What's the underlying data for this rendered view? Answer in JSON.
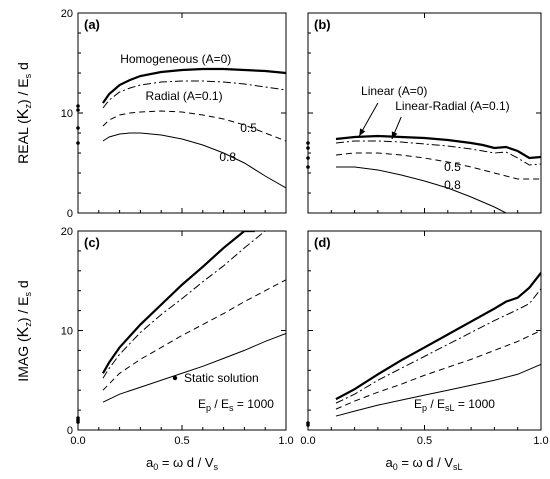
{
  "figure": {
    "y_label_real": [
      "REAL (",
      "K",
      "z",
      ") / E",
      "s",
      " d"
    ],
    "y_label_imag": [
      "IMAG (",
      "K",
      "z",
      ") / E",
      "s",
      " d"
    ],
    "x_label_left": [
      "a",
      "0",
      " = ω d / V",
      "s"
    ],
    "x_label_right": [
      "a",
      "0",
      " = ω d / V",
      "sL"
    ]
  },
  "chart_data": [
    {
      "id": "a",
      "panel_label": "(a)",
      "type": "line",
      "xlim": [
        0,
        1
      ],
      "ylim": [
        0,
        20
      ],
      "x_ticks": [
        "0.0",
        "0.5",
        "1.0"
      ],
      "y_ticks": [
        "0",
        "10",
        "20"
      ],
      "show_x_ticklabels": false,
      "show_y_ticklabels": true,
      "annotations": [
        {
          "text": "Homogeneous (A=0)",
          "x": 0.47,
          "y": 15.0
        },
        {
          "text": "Radial (A=0.1)",
          "x": 0.51,
          "y": 11.3
        },
        {
          "text": "0.5",
          "x": 0.82,
          "y": 8.1
        },
        {
          "text": "0.8",
          "x": 0.72,
          "y": 5.2
        }
      ],
      "static_points": [
        10.7,
        10.3,
        8.5,
        7.0
      ],
      "series": [
        {
          "style": "solid-thick",
          "x": [
            0.12,
            0.15,
            0.2,
            0.25,
            0.3,
            0.4,
            0.5,
            0.6,
            0.7,
            0.8,
            0.9,
            1.0
          ],
          "y": [
            11.0,
            11.9,
            12.8,
            13.3,
            13.7,
            14.1,
            14.3,
            14.4,
            14.4,
            14.3,
            14.2,
            14.0
          ]
        },
        {
          "style": "dash-dot",
          "x": [
            0.12,
            0.15,
            0.2,
            0.25,
            0.3,
            0.4,
            0.5,
            0.6,
            0.7,
            0.8,
            0.9,
            1.0
          ],
          "y": [
            10.5,
            11.3,
            12.1,
            12.5,
            12.8,
            13.1,
            13.2,
            13.2,
            13.1,
            12.9,
            12.6,
            12.3
          ]
        },
        {
          "style": "dashed",
          "x": [
            0.12,
            0.15,
            0.2,
            0.25,
            0.3,
            0.4,
            0.5,
            0.6,
            0.7,
            0.8,
            0.9,
            1.0
          ],
          "y": [
            8.7,
            9.3,
            9.8,
            10.0,
            10.1,
            10.2,
            10.1,
            9.8,
            9.4,
            8.8,
            8.0,
            7.2
          ]
        },
        {
          "style": "solid",
          "x": [
            0.12,
            0.15,
            0.2,
            0.25,
            0.3,
            0.4,
            0.5,
            0.6,
            0.7,
            0.8,
            0.9,
            1.0
          ],
          "y": [
            7.2,
            7.6,
            7.9,
            8.0,
            8.0,
            7.8,
            7.4,
            6.8,
            6.0,
            5.0,
            3.7,
            2.5
          ]
        }
      ]
    },
    {
      "id": "b",
      "panel_label": "(b)",
      "type": "line",
      "xlim": [
        0,
        1
      ],
      "ylim": [
        0,
        20
      ],
      "x_ticks": [
        "0.0",
        "0.5",
        "1.0"
      ],
      "y_ticks": [
        "0",
        "10",
        "20"
      ],
      "show_x_ticklabels": false,
      "show_y_ticklabels": false,
      "annotations": [
        {
          "text": "Linear (A=0)",
          "x": 0.37,
          "y": 11.8
        },
        {
          "text": "Linear-Radial (A=0.1)",
          "x": 0.62,
          "y": 10.3
        },
        {
          "text": "0.5",
          "x": 0.62,
          "y": 4.2
        },
        {
          "text": "0.8",
          "x": 0.62,
          "y": 2.4
        }
      ],
      "arrows": [
        {
          "x1": 0.3,
          "y1": 11.0,
          "x2": 0.22,
          "y2": 7.7
        },
        {
          "x1": 0.4,
          "y1": 9.6,
          "x2": 0.36,
          "y2": 7.4
        }
      ],
      "static_points": [
        7.0,
        6.5,
        5.5,
        4.6
      ],
      "series": [
        {
          "style": "solid-thick",
          "x": [
            0.12,
            0.2,
            0.3,
            0.4,
            0.5,
            0.6,
            0.7,
            0.75,
            0.8,
            0.85,
            0.9,
            0.95,
            1.0
          ],
          "y": [
            7.4,
            7.6,
            7.7,
            7.6,
            7.5,
            7.3,
            7.0,
            6.8,
            6.5,
            6.6,
            6.2,
            5.5,
            5.6
          ]
        },
        {
          "style": "dash-dot",
          "x": [
            0.12,
            0.2,
            0.3,
            0.4,
            0.5,
            0.6,
            0.7,
            0.8,
            0.85,
            0.9,
            0.95,
            1.0
          ],
          "y": [
            7.0,
            7.2,
            7.2,
            7.1,
            6.9,
            6.7,
            6.4,
            6.0,
            6.1,
            5.5,
            4.8,
            4.9
          ]
        },
        {
          "style": "dashed",
          "x": [
            0.12,
            0.2,
            0.3,
            0.4,
            0.5,
            0.6,
            0.7,
            0.8,
            0.9,
            1.0
          ],
          "y": [
            5.8,
            6.0,
            6.0,
            5.8,
            5.5,
            5.1,
            4.6,
            4.0,
            3.4,
            3.4
          ]
        },
        {
          "style": "solid",
          "x": [
            0.12,
            0.2,
            0.3,
            0.4,
            0.5,
            0.6,
            0.7,
            0.8,
            0.85
          ],
          "y": [
            4.6,
            4.6,
            4.3,
            3.8,
            3.2,
            2.5,
            1.6,
            0.6,
            0.0
          ]
        }
      ]
    },
    {
      "id": "c",
      "panel_label": "(c)",
      "type": "line",
      "xlim": [
        0,
        1
      ],
      "ylim": [
        0,
        20
      ],
      "x_ticks": [
        "0.0",
        "0.5",
        "1.0"
      ],
      "y_ticks": [
        "0",
        "10",
        "20"
      ],
      "show_x_ticklabels": true,
      "show_y_ticklabels": true,
      "legend_marker": "Static solution",
      "note": [
        "E",
        "p",
        " / E",
        "s",
        " = 1000"
      ],
      "static_points": [
        1.2,
        1.0,
        0.8
      ],
      "series": [
        {
          "style": "solid-thick",
          "x": [
            0.12,
            0.15,
            0.2,
            0.3,
            0.4,
            0.5,
            0.6,
            0.7,
            0.8,
            0.85
          ],
          "y": [
            5.7,
            6.8,
            8.3,
            10.6,
            12.6,
            14.6,
            16.4,
            18.3,
            20.1,
            21.0
          ]
        },
        {
          "style": "dash-dot",
          "x": [
            0.12,
            0.15,
            0.2,
            0.3,
            0.4,
            0.5,
            0.6,
            0.7,
            0.8,
            0.9,
            0.95
          ],
          "y": [
            5.2,
            6.2,
            7.6,
            9.8,
            11.6,
            13.2,
            14.9,
            16.5,
            18.3,
            20.0,
            21.0
          ]
        },
        {
          "style": "dashed",
          "x": [
            0.12,
            0.2,
            0.3,
            0.4,
            0.5,
            0.6,
            0.7,
            0.8,
            0.9,
            1.0
          ],
          "y": [
            4.0,
            5.7,
            7.1,
            8.3,
            9.5,
            10.6,
            11.7,
            12.9,
            14.0,
            15.1
          ]
        },
        {
          "style": "solid",
          "x": [
            0.12,
            0.2,
            0.3,
            0.4,
            0.5,
            0.6,
            0.7,
            0.8,
            0.9,
            1.0
          ],
          "y": [
            2.8,
            3.6,
            4.3,
            5.0,
            5.7,
            6.4,
            7.2,
            8.0,
            8.9,
            9.7
          ]
        }
      ]
    },
    {
      "id": "d",
      "panel_label": "(d)",
      "type": "line",
      "xlim": [
        0,
        1
      ],
      "ylim": [
        0,
        20
      ],
      "x_ticks": [
        "0.0",
        "0.5",
        "1.0"
      ],
      "y_ticks": [
        "0",
        "10",
        "20"
      ],
      "show_x_ticklabels": true,
      "show_y_ticklabels": false,
      "note": [
        "E",
        "p",
        " / E",
        "sL",
        " = 1000"
      ],
      "static_points": [
        0.7,
        0.5
      ],
      "series": [
        {
          "style": "solid-thick",
          "x": [
            0.12,
            0.2,
            0.3,
            0.4,
            0.5,
            0.6,
            0.7,
            0.8,
            0.85,
            0.9,
            0.95,
            1.0
          ],
          "y": [
            3.1,
            4.1,
            5.6,
            7.0,
            8.3,
            9.6,
            10.9,
            12.2,
            12.9,
            13.3,
            14.3,
            15.8
          ]
        },
        {
          "style": "dash-dot",
          "x": [
            0.12,
            0.2,
            0.3,
            0.4,
            0.5,
            0.6,
            0.7,
            0.8,
            0.9,
            0.95,
            1.0
          ],
          "y": [
            2.7,
            3.6,
            5.0,
            6.2,
            7.4,
            8.6,
            9.8,
            11.0,
            12.1,
            12.7,
            14.2
          ]
        },
        {
          "style": "dashed",
          "x": [
            0.12,
            0.2,
            0.3,
            0.4,
            0.5,
            0.6,
            0.7,
            0.8,
            0.9,
            1.0
          ],
          "y": [
            2.1,
            2.9,
            3.8,
            4.6,
            5.5,
            6.3,
            7.1,
            8.0,
            8.9,
            10.0
          ]
        },
        {
          "style": "solid",
          "x": [
            0.12,
            0.2,
            0.3,
            0.4,
            0.5,
            0.6,
            0.7,
            0.8,
            0.9,
            1.0
          ],
          "y": [
            1.4,
            1.9,
            2.5,
            3.0,
            3.5,
            4.0,
            4.5,
            5.0,
            5.6,
            6.6
          ]
        }
      ]
    }
  ]
}
